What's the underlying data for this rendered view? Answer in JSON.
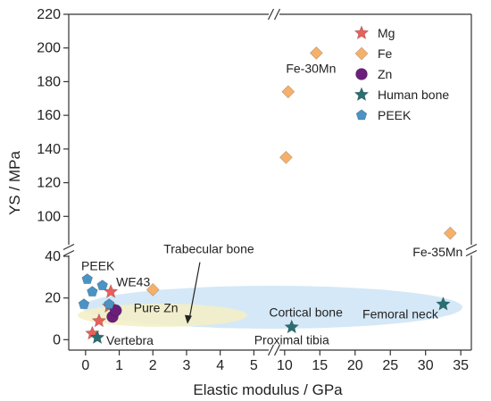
{
  "chart_data": {
    "type": "scatter",
    "title": "",
    "xlabel": "Elastic modulus / GPa",
    "ylabel": "YS / MPa",
    "x_axis_break": true,
    "y_axis_break": true,
    "x_segments": [
      {
        "range": [
          -0.5,
          5.6
        ],
        "ticks": [
          "0",
          "1",
          "2",
          "3",
          "4",
          "5"
        ],
        "tick_values": [
          0,
          1,
          2,
          3,
          4,
          5
        ]
      },
      {
        "range": [
          8.5,
          36.5
        ],
        "ticks": [
          "10",
          "15",
          "20",
          "25",
          "30",
          "35"
        ],
        "tick_values": [
          10,
          15,
          20,
          25,
          30,
          35
        ]
      }
    ],
    "y_segments": [
      {
        "range": [
          -5,
          43
        ],
        "ticks": [
          "0",
          "20",
          "40"
        ],
        "tick_values": [
          0,
          20,
          40
        ]
      },
      {
        "range": [
          80,
          220
        ],
        "ticks": [
          "100",
          "120",
          "140",
          "160",
          "180",
          "200",
          "220"
        ],
        "tick_values": [
          100,
          120,
          140,
          160,
          180,
          200,
          220
        ]
      }
    ],
    "legend": {
      "placement": "top-right",
      "entries": [
        {
          "name": "Mg",
          "marker": "star",
          "color": "#e8605a"
        },
        {
          "name": "Fe",
          "marker": "diamond",
          "color": "#f5b06a"
        },
        {
          "name": "Zn",
          "marker": "circle",
          "color": "#6a1f7a"
        },
        {
          "name": "Human bone",
          "marker": "star",
          "color": "#2a6e72"
        },
        {
          "name": "PEEK",
          "marker": "pentagon",
          "color": "#4b93c4"
        }
      ]
    },
    "series": [
      {
        "name": "Mg",
        "marker": "star",
        "color": "#e8605a",
        "points": [
          {
            "x": 0.2,
            "y": 3
          },
          {
            "x": 0.4,
            "y": 9
          },
          {
            "x": 0.7,
            "y": 16
          },
          {
            "x": 0.75,
            "y": 23
          }
        ]
      },
      {
        "name": "Fe",
        "marker": "diamond",
        "color": "#f5b06a",
        "points": [
          {
            "x": 2.0,
            "y": 24
          },
          {
            "x": 10.2,
            "y": 135
          },
          {
            "x": 10.5,
            "y": 174
          },
          {
            "x": 14.5,
            "y": 197
          },
          {
            "x": 33.5,
            "y": 90
          }
        ]
      },
      {
        "name": "Zn",
        "marker": "circle",
        "color": "#6a1f7a",
        "points": [
          {
            "x": 0.8,
            "y": 11
          },
          {
            "x": 0.9,
            "y": 14
          }
        ]
      },
      {
        "name": "Human bone",
        "marker": "star",
        "color": "#2a6e72",
        "points": [
          {
            "x": 0.35,
            "y": 1
          },
          {
            "x": 11.0,
            "y": 6
          },
          {
            "x": 32.5,
            "y": 17
          }
        ]
      },
      {
        "name": "PEEK",
        "marker": "pentagon",
        "color": "#4b93c4",
        "points": [
          {
            "x": -0.05,
            "y": 17
          },
          {
            "x": 0.05,
            "y": 29
          },
          {
            "x": 0.2,
            "y": 23
          },
          {
            "x": 0.5,
            "y": 26
          },
          {
            "x": 0.7,
            "y": 17
          }
        ]
      }
    ],
    "regions": [
      {
        "name": "Trabecular bone",
        "color": "#f4efc4"
      },
      {
        "name": "Cortical bone",
        "color": "#cfe6f6"
      }
    ],
    "annotations": [
      {
        "text": "Fe-30Mn",
        "x": 14.5,
        "y": 197
      },
      {
        "text": "Fe-35Mn",
        "x": 33.5,
        "y": 90
      },
      {
        "text": "PEEK",
        "x": 0.05,
        "y": 29
      },
      {
        "text": "WE43",
        "x": 0.75,
        "y": 23
      },
      {
        "text": "Pure Zn",
        "x": 0.9,
        "y": 14
      },
      {
        "text": "Vertebra",
        "x": 0.35,
        "y": 1
      },
      {
        "text": "Trabecular bone",
        "x": 3.0,
        "y": 8
      },
      {
        "text": "Cortical bone",
        "x": 12.0,
        "y": 12
      },
      {
        "text": "Proximal tibia",
        "x": 11.0,
        "y": 6
      },
      {
        "text": "Femoral neck",
        "x": 32.5,
        "y": 17
      }
    ]
  }
}
